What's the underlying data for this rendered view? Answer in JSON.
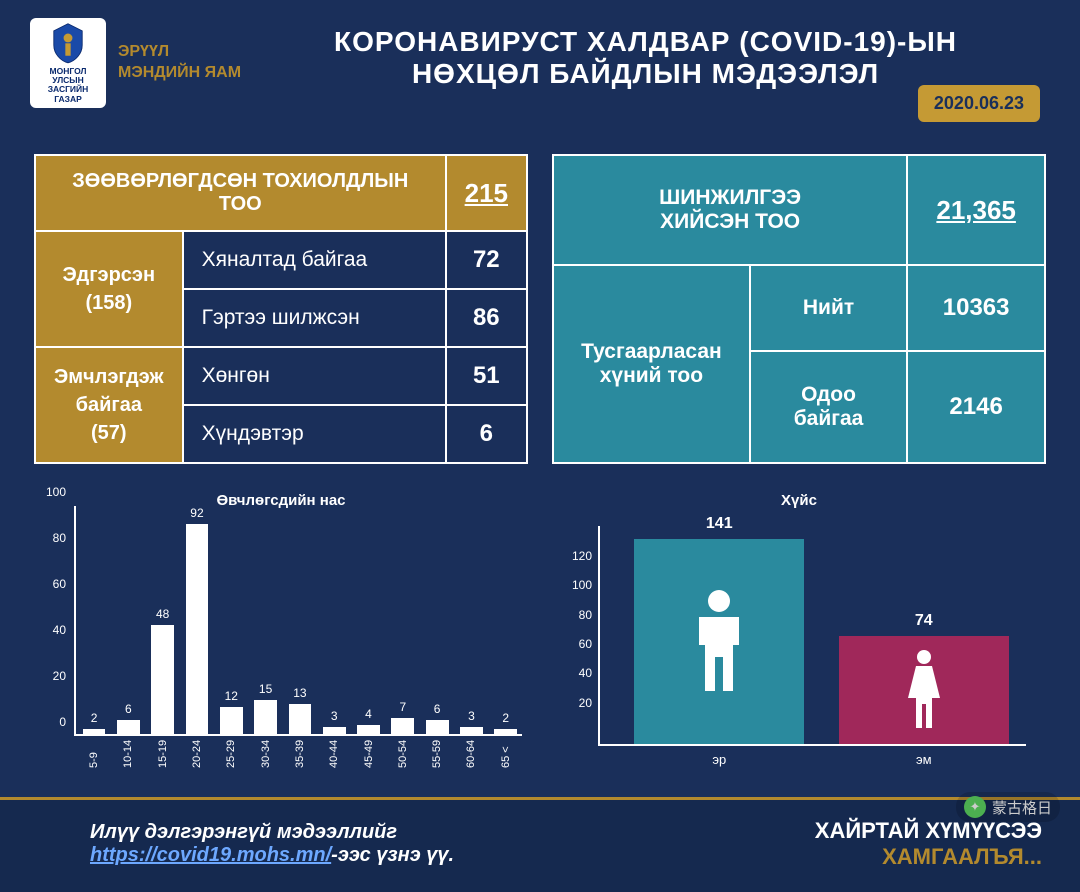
{
  "header": {
    "emblem_line1": "МОНГОЛ УЛСЫН",
    "emblem_line2": "ЗАСГИЙН ГАЗАР",
    "ministry_line1": "ЭРҮҮЛ",
    "ministry_line2": "МЭНДИЙН ЯАМ",
    "title_line1": "КОРОНАВИРУСТ ХАЛДВАР (COVID-19)-ЫН",
    "title_line2": "НӨХЦӨЛ БАЙДЛЫН МЭДЭЭЛЭЛ",
    "date": "2020.06.23"
  },
  "left_table": {
    "header_label": "ЗӨӨВӨРЛӨГДСӨН ТОХИОЛДЛЫН ТОО",
    "header_value": "215",
    "rows": [
      {
        "group": "Эдгэрсэн (158)",
        "sub": "Хяналтад байгаа",
        "val": "72"
      },
      {
        "group": "",
        "sub": "Гэртээ шилжсэн",
        "val": "86"
      },
      {
        "group": "Эмчлэгдэж байгаа (57)",
        "sub": "Хөнгөн",
        "val": "51"
      },
      {
        "group": "",
        "sub": "Хүндэвтэр",
        "val": "6"
      }
    ],
    "group1_label": "Эдгэрсэн",
    "group1_count": "(158)",
    "group2_label_l1": "Эмчлэгдэж",
    "group2_label_l2": "байгаа",
    "group2_count": "(57)",
    "colors": {
      "gold": "#b38a2e",
      "border": "#ffffff",
      "text": "#ffffff"
    }
  },
  "right_table": {
    "r1_label_l1": "ШИНЖИЛГЭЭ",
    "r1_label_l2": "ХИЙСЭН ТОО",
    "r1_value": "21,365",
    "r2_label_l1": "Тусгаарласан",
    "r2_label_l2": "хүний тоо",
    "r2a_sub": "Нийт",
    "r2a_val": "10363",
    "r2b_sub_l1": "Одоо",
    "r2b_sub_l2": "байгаа",
    "r2b_val": "2146",
    "colors": {
      "teal": "#2a8a9e",
      "border": "#ffffff",
      "text": "#ffffff"
    }
  },
  "age_chart": {
    "type": "bar",
    "title": "Өвчлөгсдийн нас",
    "categories": [
      "5-9",
      "10-14",
      "15-19",
      "20-24",
      "25-29",
      "30-34",
      "35-39",
      "40-44",
      "45-49",
      "50-54",
      "55-59",
      "60-64",
      "65 <"
    ],
    "values": [
      2,
      6,
      48,
      92,
      12,
      15,
      13,
      3,
      4,
      7,
      6,
      3,
      2
    ],
    "bar_color": "#ffffff",
    "ylim": [
      0,
      100
    ],
    "ytick_step": 20,
    "axis_color": "#ffffff",
    "label_fontsize": 11,
    "value_fontsize": 12,
    "title_fontsize": 15,
    "background": "transparent"
  },
  "gender_chart": {
    "type": "bar",
    "title": "Хүйс",
    "categories": [
      "эр",
      "эм"
    ],
    "values": [
      141,
      74
    ],
    "bar_colors": [
      "#2a8a9e",
      "#a0285a"
    ],
    "ylim": [
      0,
      150
    ],
    "yticks": [
      20,
      40,
      60,
      80,
      100,
      120
    ],
    "axis_color": "#ffffff",
    "title_fontsize": 15,
    "value_fontsize": 16,
    "label_fontsize": 13
  },
  "footer": {
    "left_pre": "Илүү дэлгэрэнгүй мэдээллийг",
    "left_link": "https://covid19.mohs.mn/",
    "left_post": "-ээс үзнэ үү.",
    "right_l1": "ХАЙРТАЙ ХҮМҮҮСЭЭ",
    "right_l2": "ХАМГААЛЪЯ..."
  },
  "watermark": "蒙古格日"
}
